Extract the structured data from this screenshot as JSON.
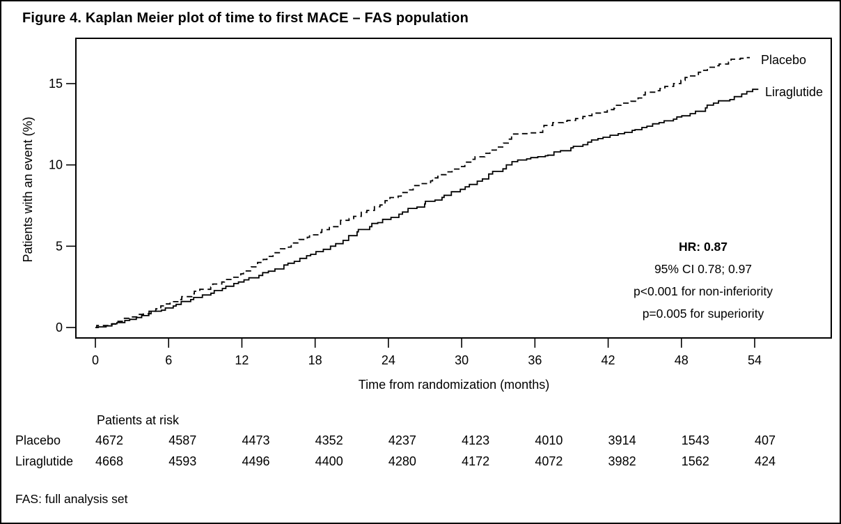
{
  "title": "Figure 4. Kaplan Meier plot of time to first MACE – FAS population",
  "footnote": "FAS: full analysis set",
  "annotation": {
    "hr": "HR: 0.87",
    "ci": "95% CI 0.78; 0.97",
    "p_noninferiority": "p<0.001 for non-inferiority",
    "p_superiority": "p=0.005 for superiority"
  },
  "chart_data": {
    "type": "line",
    "subtype": "kaplan-meier-step",
    "xlabel": "Time from randomization (months)",
    "ylabel": "Patients with an event (%)",
    "xlim": [
      0,
      54
    ],
    "ylim": [
      0,
      17.5
    ],
    "x_ticks": [
      0,
      6,
      12,
      18,
      24,
      30,
      36,
      42,
      48,
      54
    ],
    "y_ticks": [
      0,
      5,
      10,
      15
    ],
    "grid": false,
    "legend_position": "end-of-line-labels",
    "line_color": "#000000",
    "series": [
      {
        "name": "Placebo",
        "style": "dashed",
        "points": [
          [
            0,
            0
          ],
          [
            0.8,
            0.12
          ],
          [
            2,
            0.38
          ],
          [
            3,
            0.65
          ],
          [
            4.5,
            1.0
          ],
          [
            6,
            1.45
          ],
          [
            7.5,
            1.9
          ],
          [
            9,
            2.35
          ],
          [
            10.5,
            2.8
          ],
          [
            12,
            3.3
          ],
          [
            13.5,
            4.0
          ],
          [
            15,
            4.6
          ],
          [
            16.5,
            5.2
          ],
          [
            18,
            5.7
          ],
          [
            19.5,
            6.2
          ],
          [
            21,
            6.7
          ],
          [
            22.5,
            7.2
          ],
          [
            24,
            7.8
          ],
          [
            25.5,
            8.3
          ],
          [
            27,
            8.85
          ],
          [
            28.5,
            9.4
          ],
          [
            30,
            9.9
          ],
          [
            31.5,
            10.5
          ],
          [
            33,
            11.1
          ],
          [
            34.5,
            11.9
          ],
          [
            36.3,
            12.0
          ],
          [
            36.7,
            12.25
          ],
          [
            38,
            12.6
          ],
          [
            39.5,
            12.85
          ],
          [
            42,
            13.4
          ],
          [
            43.5,
            13.8
          ],
          [
            45,
            14.3
          ],
          [
            46.5,
            14.7
          ],
          [
            48,
            15.2
          ],
          [
            49.5,
            15.7
          ],
          [
            51,
            16.1
          ],
          [
            52.5,
            16.5
          ],
          [
            53.6,
            16.6
          ]
        ]
      },
      {
        "name": "Liraglutide",
        "style": "solid",
        "points": [
          [
            0,
            0
          ],
          [
            1,
            0.1
          ],
          [
            2,
            0.3
          ],
          [
            3,
            0.5
          ],
          [
            4.5,
            0.85
          ],
          [
            6,
            1.2
          ],
          [
            7.5,
            1.6
          ],
          [
            9,
            2.0
          ],
          [
            10.5,
            2.4
          ],
          [
            12,
            2.8
          ],
          [
            13.5,
            3.2
          ],
          [
            15,
            3.6
          ],
          [
            16,
            3.95
          ],
          [
            18,
            4.5
          ],
          [
            19.5,
            5.0
          ],
          [
            21,
            5.65
          ],
          [
            22.5,
            6.2
          ],
          [
            24,
            6.65
          ],
          [
            25.5,
            7.1
          ],
          [
            27,
            7.6
          ],
          [
            28.5,
            8.0
          ],
          [
            30,
            8.5
          ],
          [
            31.5,
            9.0
          ],
          [
            33,
            9.6
          ],
          [
            34.5,
            10.2
          ],
          [
            36,
            10.45
          ],
          [
            37.5,
            10.6
          ],
          [
            39,
            11.05
          ],
          [
            40.5,
            11.4
          ],
          [
            42,
            11.7
          ],
          [
            43.5,
            12.0
          ],
          [
            45,
            12.3
          ],
          [
            46.5,
            12.6
          ],
          [
            48,
            12.95
          ],
          [
            49.5,
            13.3
          ],
          [
            51,
            13.8
          ],
          [
            52.5,
            14.2
          ],
          [
            54.3,
            14.65
          ]
        ]
      }
    ]
  },
  "risk_table": {
    "header": "Patients at risk",
    "time_points": [
      0,
      6,
      12,
      18,
      24,
      30,
      36,
      42,
      48,
      54
    ],
    "rows": [
      {
        "label": "Placebo",
        "counts": [
          "4672",
          "4587",
          "4473",
          "4352",
          "4237",
          "4123",
          "4010",
          "3914",
          "1543",
          "407"
        ]
      },
      {
        "label": "Liraglutide",
        "counts": [
          "4668",
          "4593",
          "4496",
          "4400",
          "4280",
          "4172",
          "4072",
          "3982",
          "1562",
          "424"
        ]
      }
    ]
  }
}
